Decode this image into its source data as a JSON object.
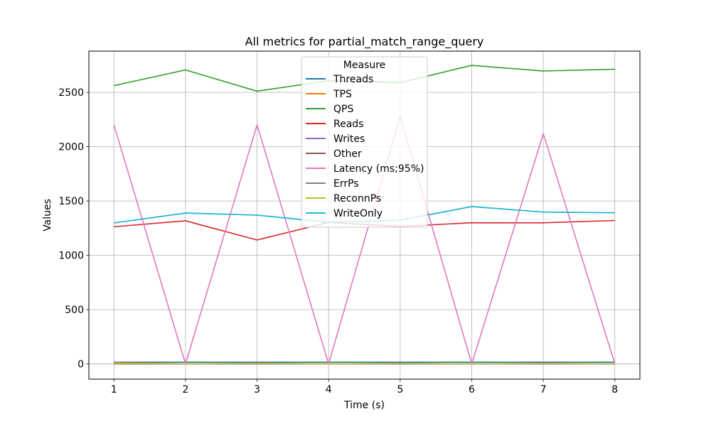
{
  "chart_data": {
    "type": "line",
    "title": "All metrics for partial_match_range_query",
    "xlabel": "Time (s)",
    "ylabel": "Values",
    "x": [
      1,
      2,
      3,
      4,
      5,
      6,
      7,
      8
    ],
    "xlim": [
      0.65,
      8.35
    ],
    "ylim": [
      -140,
      2880
    ],
    "xticks": [
      1,
      2,
      3,
      4,
      5,
      6,
      7,
      8
    ],
    "yticks": [
      0,
      500,
      1000,
      1500,
      2000,
      2500
    ],
    "grid": true,
    "legend": {
      "title": "Measure",
      "placement": "upper-center"
    },
    "series": [
      {
        "name": "Threads",
        "color": "#1f77b4",
        "values": [
          16,
          16,
          16,
          16,
          16,
          16,
          16,
          16
        ]
      },
      {
        "name": "TPS",
        "color": "#ff7f0e",
        "values": [
          10,
          1,
          6,
          1,
          5,
          1,
          5,
          1
        ]
      },
      {
        "name": "QPS",
        "color": "#2ca02c",
        "values": [
          2562,
          2707,
          2511,
          2607,
          2590,
          2749,
          2697,
          2713
        ]
      },
      {
        "name": "Reads",
        "color": "#d62728",
        "values": [
          1263,
          1318,
          1141,
          1303,
          1266,
          1300,
          1299,
          1321
        ]
      },
      {
        "name": "Writes",
        "color": "#9467bd",
        "values": [
          1298,
          1389,
          1370,
          1304,
          1324,
          1449,
          1398,
          1392
        ]
      },
      {
        "name": "Other",
        "color": "#8c564b",
        "values": [
          0,
          0,
          0,
          0,
          0,
          0,
          0,
          0
        ]
      },
      {
        "name": "Latency (ms;95%)",
        "color": "#e377c2",
        "values": [
          2202,
          0,
          2202,
          0,
          2279,
          0,
          2120,
          0
        ]
      },
      {
        "name": "ErrPs",
        "color": "#7f7f7f",
        "values": [
          0,
          0,
          0,
          0,
          0,
          0,
          0,
          0
        ]
      },
      {
        "name": "ReconnPs",
        "color": "#bcbd22",
        "values": [
          6,
          1,
          4,
          1,
          4,
          1,
          3,
          1
        ]
      },
      {
        "name": "WriteOnly",
        "color": "#17becf",
        "values": [
          1298,
          1389,
          1370,
          1304,
          1324,
          1449,
          1398,
          1392
        ]
      }
    ]
  }
}
